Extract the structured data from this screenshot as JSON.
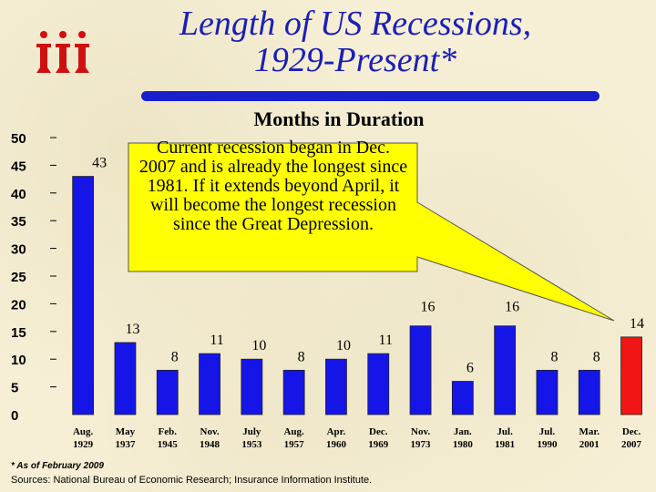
{
  "title_line1": "Length of US Recessions,",
  "title_line2": "1929-Present*",
  "logo_text": "iii",
  "callout": "Current recession began in Dec. 2007 and is already the longest since 1981.  If it extends beyond April, it will become the longest recession since the Great Depression.",
  "footnote": "* As of February 2009",
  "sources": "Sources: National Bureau of Economic Research; Insurance Information Institute.",
  "colors": {
    "bar": "#1515e8",
    "highlight": "#f21515",
    "title": "#1a1fb8",
    "callout_fill": "#ffff00"
  },
  "chart_data": {
    "type": "bar",
    "title": "Months in Duration",
    "xlabel": "",
    "ylabel": "",
    "ylim": [
      0,
      50
    ],
    "yticks": [
      "0",
      "5",
      "10",
      "15",
      "20",
      "25",
      "30",
      "35",
      "40",
      "45",
      "50"
    ],
    "categories": [
      [
        "Aug.",
        "1929"
      ],
      [
        "May",
        "1937"
      ],
      [
        "Feb.",
        "1945"
      ],
      [
        "Nov.",
        "1948"
      ],
      [
        "July",
        "1953"
      ],
      [
        "Aug.",
        "1957"
      ],
      [
        "Apr.",
        "1960"
      ],
      [
        "Dec.",
        "1969"
      ],
      [
        "Nov.",
        "1973"
      ],
      [
        "Jan.",
        "1980"
      ],
      [
        "Jul.",
        "1981"
      ],
      [
        "Jul.",
        "1990"
      ],
      [
        "Mar.",
        "2001"
      ],
      [
        "Dec.",
        "2007"
      ]
    ],
    "values": [
      43,
      13,
      8,
      11,
      10,
      8,
      10,
      11,
      16,
      6,
      16,
      8,
      8,
      14
    ],
    "highlight_index": 13,
    "grid": false
  }
}
